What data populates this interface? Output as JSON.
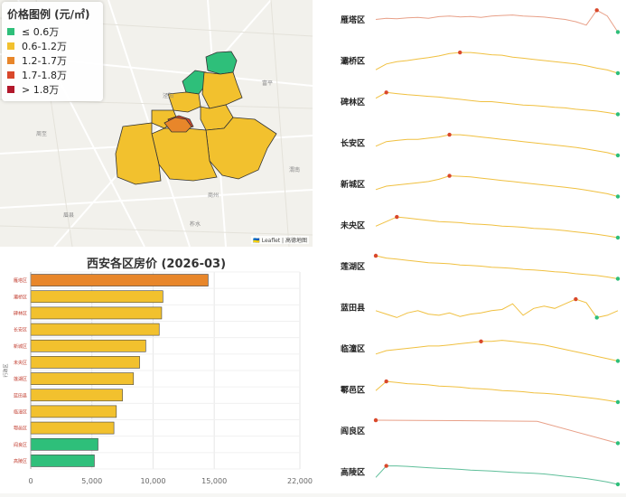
{
  "legend": {
    "title": "价格图例 (元/㎡)",
    "items": [
      {
        "label": "≤ 0.6万",
        "color": "#2ebf7a"
      },
      {
        "label": "0.6-1.2万",
        "color": "#f2c12e"
      },
      {
        "label": "1.2-1.7万",
        "color": "#e8862a"
      },
      {
        "label": "1.7-1.8万",
        "color": "#d9482b"
      },
      {
        "label": "> 1.8万",
        "color": "#b2182b"
      }
    ]
  },
  "map": {
    "attribution": "🇺🇦 Leaflet | 高德地图"
  },
  "chart_data": [
    {
      "type": "bar",
      "orientation": "horizontal",
      "title": "西安各区房价 (2026-03)",
      "ylabel": "行政区",
      "categories": [
        "雁塔区",
        "灞桥区",
        "碑林区",
        "长安区",
        "新城区",
        "未央区",
        "莲湖区",
        "蓝田县",
        "临潼区",
        "鄠邑区",
        "阎良区",
        "高陵区"
      ],
      "values": [
        14500,
        10800,
        10700,
        10500,
        9400,
        8900,
        8400,
        7500,
        7000,
        6800,
        5500,
        5200
      ],
      "colors": [
        "#e8862a",
        "#f2c12e",
        "#f2c12e",
        "#f2c12e",
        "#f2c12e",
        "#f2c12e",
        "#f2c12e",
        "#f2c12e",
        "#f2c12e",
        "#f2c12e",
        "#2ebf7a",
        "#2ebf7a"
      ],
      "xticks": [
        "0",
        "5,000",
        "10,000",
        "15,000",
        "22,000"
      ],
      "xtick_values": [
        0,
        5000,
        10000,
        15000,
        22000
      ],
      "xlim": [
        0,
        22000
      ]
    },
    {
      "type": "line",
      "subtype": "sparklines",
      "series": [
        {
          "name": "雁塔区",
          "color": "#e8a088",
          "values": [
            0.45,
            0.4,
            0.42,
            0.38,
            0.36,
            0.4,
            0.33,
            0.3,
            0.34,
            0.32,
            0.36,
            0.3,
            0.28,
            0.26,
            0.3,
            0.32,
            0.35,
            0.4,
            0.45,
            0.55,
            0.7,
            0.05,
            0.3,
            1.0
          ],
          "max_index": 21,
          "min_index": 23
        },
        {
          "name": "灞桥区",
          "color": "#f0c040",
          "values": [
            0.85,
            0.6,
            0.5,
            0.45,
            0.38,
            0.32,
            0.25,
            0.15,
            0.1,
            0.1,
            0.15,
            0.2,
            0.22,
            0.3,
            0.35,
            0.4,
            0.45,
            0.5,
            0.55,
            0.6,
            0.68,
            0.78,
            0.86,
            1.0
          ],
          "max_index": 8,
          "min_index": 23
        },
        {
          "name": "碑林区",
          "color": "#f0c040",
          "values": [
            0.3,
            0.05,
            0.1,
            0.15,
            0.18,
            0.22,
            0.25,
            0.3,
            0.35,
            0.4,
            0.45,
            0.45,
            0.5,
            0.55,
            0.6,
            0.62,
            0.65,
            0.7,
            0.72,
            0.78,
            0.82,
            0.86,
            0.92,
            1.0
          ],
          "max_index": 1,
          "min_index": 23
        },
        {
          "name": "长安区",
          "color": "#f0c040",
          "values": [
            0.6,
            0.4,
            0.35,
            0.3,
            0.3,
            0.25,
            0.2,
            0.1,
            0.1,
            0.15,
            0.2,
            0.25,
            0.3,
            0.35,
            0.4,
            0.45,
            0.5,
            0.55,
            0.6,
            0.65,
            0.72,
            0.8,
            0.88,
            1.0
          ],
          "max_index": 7,
          "min_index": 23
        },
        {
          "name": "新城区",
          "color": "#f0c040",
          "values": [
            0.7,
            0.55,
            0.5,
            0.45,
            0.4,
            0.35,
            0.25,
            0.1,
            0.12,
            0.15,
            0.2,
            0.25,
            0.3,
            0.35,
            0.4,
            0.45,
            0.5,
            0.55,
            0.6,
            0.65,
            0.72,
            0.8,
            0.88,
            1.0
          ],
          "max_index": 7,
          "min_index": 23
        },
        {
          "name": "未央区",
          "color": "#f0c040",
          "values": [
            0.5,
            0.3,
            0.1,
            0.15,
            0.2,
            0.25,
            0.3,
            0.32,
            0.35,
            0.4,
            0.42,
            0.45,
            0.5,
            0.52,
            0.55,
            0.6,
            0.62,
            0.65,
            0.7,
            0.75,
            0.8,
            0.85,
            0.92,
            1.0
          ],
          "max_index": 2,
          "min_index": 23
        },
        {
          "name": "莲湖区",
          "color": "#f0c040",
          "values": [
            0.0,
            0.1,
            0.15,
            0.2,
            0.25,
            0.3,
            0.32,
            0.35,
            0.4,
            0.42,
            0.45,
            0.5,
            0.52,
            0.55,
            0.6,
            0.62,
            0.65,
            0.7,
            0.72,
            0.78,
            0.82,
            0.86,
            0.92,
            1.0
          ],
          "max_index": 0,
          "min_index": 23
        },
        {
          "name": "蓝田县",
          "color": "#f0c040",
          "values": [
            0.6,
            0.75,
            0.9,
            0.7,
            0.6,
            0.75,
            0.8,
            0.7,
            0.85,
            0.75,
            0.7,
            0.6,
            0.55,
            0.3,
            0.8,
            0.5,
            0.4,
            0.5,
            0.3,
            0.1,
            0.25,
            0.9,
            0.8,
            0.6
          ],
          "max_index": 19,
          "min_index": 21
        },
        {
          "name": "临潼区",
          "color": "#f0c040",
          "values": [
            0.7,
            0.55,
            0.5,
            0.45,
            0.4,
            0.35,
            0.35,
            0.3,
            0.25,
            0.2,
            0.15,
            0.15,
            0.1,
            0.15,
            0.2,
            0.25,
            0.3,
            0.4,
            0.5,
            0.6,
            0.7,
            0.8,
            0.9,
            1.0
          ],
          "max_index": 10,
          "min_index": 23
        },
        {
          "name": "鄠邑区",
          "color": "#f0c040",
          "values": [
            0.5,
            0.1,
            0.15,
            0.2,
            0.22,
            0.25,
            0.3,
            0.32,
            0.35,
            0.4,
            0.42,
            0.45,
            0.5,
            0.52,
            0.55,
            0.6,
            0.62,
            0.65,
            0.7,
            0.75,
            0.8,
            0.85,
            0.92,
            1.0
          ],
          "max_index": 1,
          "min_index": 23
        },
        {
          "name": "阎良区",
          "color": "#e8a088",
          "values": [
            0.0,
            0.02,
            0.05,
            1.0
          ],
          "max_index": 0,
          "min_index": 3
        },
        {
          "name": "高陵区",
          "color": "#5fbf9a",
          "values": [
            0.7,
            0.2,
            0.2,
            0.22,
            0.25,
            0.28,
            0.3,
            0.32,
            0.35,
            0.38,
            0.4,
            0.42,
            0.45,
            0.48,
            0.5,
            0.52,
            0.55,
            0.6,
            0.65,
            0.7,
            0.75,
            0.82,
            0.9,
            1.0
          ],
          "max_index": 1,
          "min_index": 23
        }
      ]
    }
  ]
}
